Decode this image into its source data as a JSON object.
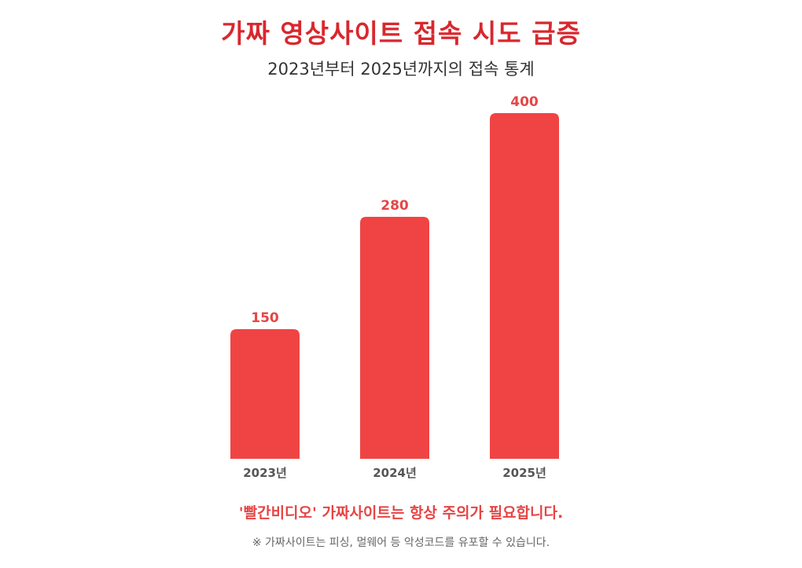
{
  "header": {
    "title": "가짜 영상사이트 접속 시도 급증",
    "subtitle": "2023년부터 2025년까지의 접속 통계"
  },
  "chart_data": {
    "type": "bar",
    "categories": [
      "2023년",
      "2024년",
      "2025년"
    ],
    "values": [
      150,
      280,
      400
    ],
    "ylim": [
      0,
      400
    ],
    "grid": false,
    "legend": "none",
    "bar_color": "#f04444",
    "value_label_color": "#e64545",
    "category_label_color": "#555555"
  },
  "footer": {
    "warning": "'빨간비디오' 가짜사이트는 항상 주의가 필요합니다.",
    "note": "※ 가짜사이트는 피싱, 멀웨어 등 악성코드를 유포할 수 있습니다."
  }
}
